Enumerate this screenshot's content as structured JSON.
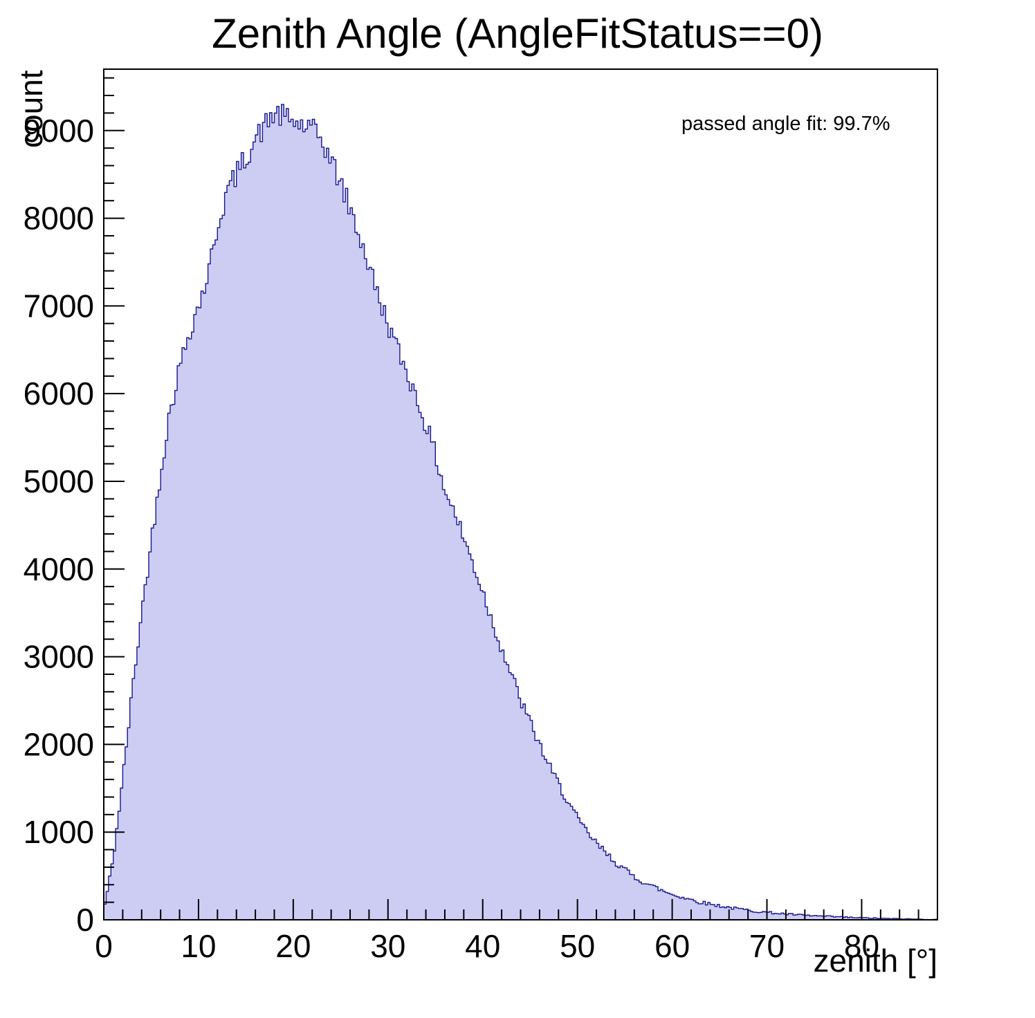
{
  "chart_data": {
    "type": "bar",
    "subtype": "histogram",
    "title": "Zenith Angle (AngleFitStatus==0)",
    "xlabel": "zenith [°]",
    "ylabel": "count",
    "annotation": "passed angle fit: 99.7%",
    "legend_position": "none",
    "grid": false,
    "xlim": [
      0,
      88
    ],
    "ylim": [
      0,
      9700
    ],
    "x_major_ticks": [
      0,
      10,
      20,
      30,
      40,
      50,
      60,
      70,
      80
    ],
    "x_minor_step": 2,
    "y_major_ticks": [
      0,
      1000,
      2000,
      3000,
      4000,
      5000,
      6000,
      7000,
      8000,
      9000
    ],
    "y_minor_step": 200,
    "bin_width_deg": 0.25,
    "x": [
      0,
      1,
      2,
      3,
      4,
      5,
      6,
      7,
      8,
      9,
      10,
      11,
      12,
      13,
      14,
      15,
      16,
      17,
      18,
      19,
      20,
      21,
      22,
      23,
      24,
      25,
      26,
      27,
      28,
      29,
      30,
      31,
      32,
      33,
      34,
      35,
      36,
      37,
      38,
      39,
      40,
      41,
      42,
      43,
      44,
      45,
      46,
      47,
      48,
      49,
      50,
      51,
      52,
      53,
      54,
      55,
      56,
      57,
      58,
      59,
      60,
      61,
      62,
      63,
      64,
      65,
      66,
      67,
      68,
      69,
      70,
      71,
      72,
      73,
      74,
      75,
      76,
      77,
      78,
      79,
      80,
      81,
      82,
      83,
      84,
      85,
      86,
      87,
      88
    ],
    "values": [
      100,
      700,
      1600,
      2600,
      3500,
      4300,
      5100,
      5800,
      6300,
      6700,
      7000,
      7350,
      7900,
      8300,
      8500,
      8700,
      8900,
      9050,
      9200,
      9150,
      9100,
      9050,
      9000,
      8900,
      8650,
      8400,
      8100,
      7800,
      7450,
      7100,
      6800,
      6500,
      6250,
      5950,
      5650,
      5300,
      4900,
      4650,
      4350,
      4050,
      3750,
      3400,
      3100,
      2800,
      2500,
      2250,
      2000,
      1750,
      1550,
      1350,
      1150,
      1000,
      870,
      760,
      660,
      570,
      490,
      430,
      380,
      330,
      290,
      260,
      230,
      200,
      180,
      160,
      140,
      125,
      110,
      95,
      85,
      75,
      65,
      58,
      50,
      45,
      40,
      35,
      30,
      26,
      22,
      19,
      16,
      13,
      11,
      9,
      7,
      5,
      4
    ],
    "fill_color": "#cdcdf4",
    "line_color": "#15158c",
    "frame_color": "#000000",
    "noise": {
      "seed": 42,
      "amplitude": 1.5
    }
  }
}
